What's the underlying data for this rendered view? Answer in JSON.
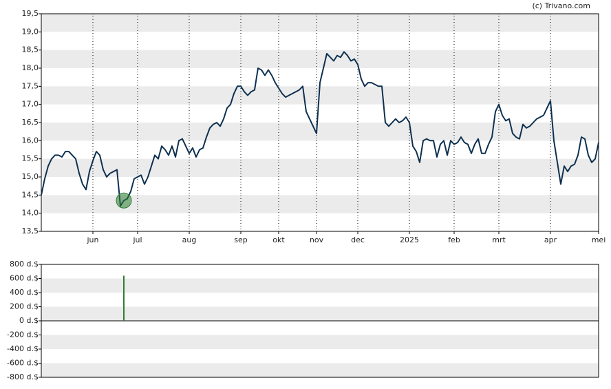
{
  "chart_data": [
    {
      "type": "line",
      "source": "(c) Trivano.com",
      "color": "#0d3050",
      "categories": [
        null,
        null,
        null,
        null,
        null,
        null,
        null,
        null,
        null,
        null,
        null,
        null,
        null,
        null,
        null,
        "jun",
        null,
        null,
        null,
        null,
        null,
        null,
        null,
        null,
        null,
        null,
        null,
        null,
        "jul",
        null,
        null,
        null,
        null,
        null,
        null,
        null,
        null,
        null,
        null,
        null,
        null,
        null,
        null,
        "aug",
        null,
        null,
        null,
        null,
        null,
        null,
        null,
        null,
        null,
        null,
        null,
        null,
        null,
        null,
        "sep",
        null,
        null,
        null,
        null,
        null,
        null,
        null,
        null,
        null,
        null,
        "okt",
        null,
        null,
        null,
        null,
        null,
        null,
        null,
        null,
        null,
        null,
        "nov",
        null,
        null,
        null,
        null,
        null,
        null,
        null,
        null,
        null,
        null,
        null,
        "dec",
        null,
        null,
        null,
        null,
        null,
        null,
        null,
        null,
        null,
        null,
        null,
        null,
        null,
        null,
        "2025",
        null,
        null,
        null,
        null,
        null,
        null,
        null,
        null,
        null,
        null,
        null,
        null,
        "feb",
        null,
        null,
        null,
        null,
        null,
        null,
        null,
        null,
        null,
        null,
        null,
        null,
        "mrt",
        null,
        null,
        null,
        null,
        null,
        null,
        null,
        null,
        null,
        null,
        null,
        null,
        null,
        null,
        "apr",
        null,
        null,
        null,
        null,
        null,
        null,
        null,
        null,
        null,
        null,
        null,
        null,
        null,
        "mei"
      ],
      "values": [
        14.5,
        14.95,
        15.3,
        15.5,
        15.6,
        15.6,
        15.55,
        15.7,
        15.7,
        15.6,
        15.5,
        15.1,
        14.8,
        14.65,
        15.15,
        15.45,
        15.7,
        15.6,
        15.2,
        15.0,
        15.1,
        15.15,
        15.2,
        14.2,
        14.35,
        14.4,
        14.6,
        14.95,
        15.0,
        15.05,
        14.8,
        15.0,
        15.3,
        15.6,
        15.5,
        15.85,
        15.75,
        15.6,
        15.85,
        15.55,
        16.0,
        16.05,
        15.85,
        15.65,
        15.8,
        15.55,
        15.75,
        15.8,
        16.1,
        16.35,
        16.45,
        16.5,
        16.4,
        16.6,
        16.9,
        17.0,
        17.3,
        17.5,
        17.5,
        17.35,
        17.25,
        17.35,
        17.4,
        18.0,
        17.95,
        17.8,
        17.95,
        17.8,
        17.6,
        17.45,
        17.3,
        17.2,
        17.25,
        17.3,
        17.35,
        17.4,
        17.5,
        16.8,
        16.6,
        16.4,
        16.2,
        17.6,
        18.0,
        18.4,
        18.3,
        18.2,
        18.35,
        18.3,
        18.45,
        18.35,
        18.2,
        18.25,
        18.1,
        17.7,
        17.5,
        17.6,
        17.6,
        17.55,
        17.5,
        17.5,
        16.5,
        16.4,
        16.5,
        16.6,
        16.5,
        16.55,
        16.65,
        16.5,
        15.85,
        15.7,
        15.4,
        16.0,
        16.05,
        16.0,
        16.0,
        15.55,
        15.9,
        16.0,
        15.6,
        16.0,
        15.9,
        15.95,
        16.1,
        15.95,
        15.9,
        15.65,
        15.9,
        16.05,
        15.65,
        15.65,
        15.9,
        16.1,
        16.8,
        17.0,
        16.7,
        16.55,
        16.6,
        16.2,
        16.1,
        16.05,
        16.45,
        16.35,
        16.4,
        16.5,
        16.6,
        16.65,
        16.7,
        16.9,
        17.1,
        16.0,
        15.4,
        14.8,
        15.3,
        15.15,
        15.3,
        15.35,
        15.6,
        16.1,
        16.05,
        15.6,
        15.4,
        15.5,
        15.95
      ],
      "ylim": [
        13.5,
        19.5
      ],
      "yticks": [
        {
          "value": 13.5,
          "label": "13,5"
        },
        {
          "value": 14,
          "label": "14,0"
        },
        {
          "value": 14.5,
          "label": "14,5"
        },
        {
          "value": 15,
          "label": "15,0"
        },
        {
          "value": 15.5,
          "label": "15,5"
        },
        {
          "value": 16,
          "label": "16,0"
        },
        {
          "value": 16.5,
          "label": "16,5"
        },
        {
          "value": 17,
          "label": "17,0"
        },
        {
          "value": 17.5,
          "label": "17,5"
        },
        {
          "value": 18,
          "label": "18,0"
        },
        {
          "value": 18.5,
          "label": "18,5"
        },
        {
          "value": 19,
          "label": "19,0"
        },
        {
          "value": 19.5,
          "label": "19,5"
        }
      ]
    },
    {
      "type": "bar",
      "color": "#2e7d32",
      "values": [
        null,
        null,
        null,
        null,
        null,
        null,
        null,
        null,
        null,
        null,
        null,
        null,
        null,
        null,
        null,
        null,
        null,
        null,
        null,
        null,
        null,
        null,
        null,
        null,
        640,
        null,
        null,
        null,
        null,
        null,
        null,
        null,
        null,
        null,
        null,
        null,
        null,
        null,
        null,
        null,
        null,
        null,
        null,
        null,
        null,
        null,
        null,
        null,
        null,
        null,
        null,
        null,
        null,
        null,
        null,
        null,
        null,
        null,
        null,
        null,
        null,
        null,
        null,
        null,
        null,
        null,
        null,
        null,
        null,
        null,
        null,
        null,
        null,
        null,
        null,
        null,
        null,
        null,
        null,
        null,
        null,
        null,
        null,
        null,
        null,
        null,
        null,
        null,
        null,
        null,
        null,
        null,
        null,
        null,
        null,
        null,
        null,
        null,
        null,
        null,
        null,
        null,
        null,
        null,
        null,
        null,
        null,
        null,
        null,
        null,
        null,
        null,
        null,
        null,
        null,
        null,
        null,
        null,
        null,
        null,
        null,
        null,
        null,
        null,
        null,
        null,
        null,
        null,
        null,
        null,
        null,
        null,
        null,
        null,
        null,
        null,
        null,
        null,
        null,
        null,
        null,
        null,
        null,
        null,
        null,
        null,
        null,
        null,
        null,
        null,
        null,
        null,
        null,
        null,
        null,
        null,
        null,
        null,
        null,
        null,
        null,
        null,
        null
      ],
      "ylim": [
        -800,
        800
      ],
      "yticks": [
        {
          "value": -800,
          "label": "-800 d.$"
        },
        {
          "value": -600,
          "label": "-600 d.$"
        },
        {
          "value": -400,
          "label": "-400 d.$"
        },
        {
          "value": -200,
          "label": "-200 d.$"
        },
        {
          "value": 0,
          "label": "0 d.$"
        },
        {
          "value": 200,
          "label": "200 d.$"
        },
        {
          "value": 400,
          "label": "400 d.$"
        },
        {
          "value": 600,
          "label": "600 d.$"
        },
        {
          "value": 800,
          "label": "800 d.$"
        }
      ]
    }
  ]
}
